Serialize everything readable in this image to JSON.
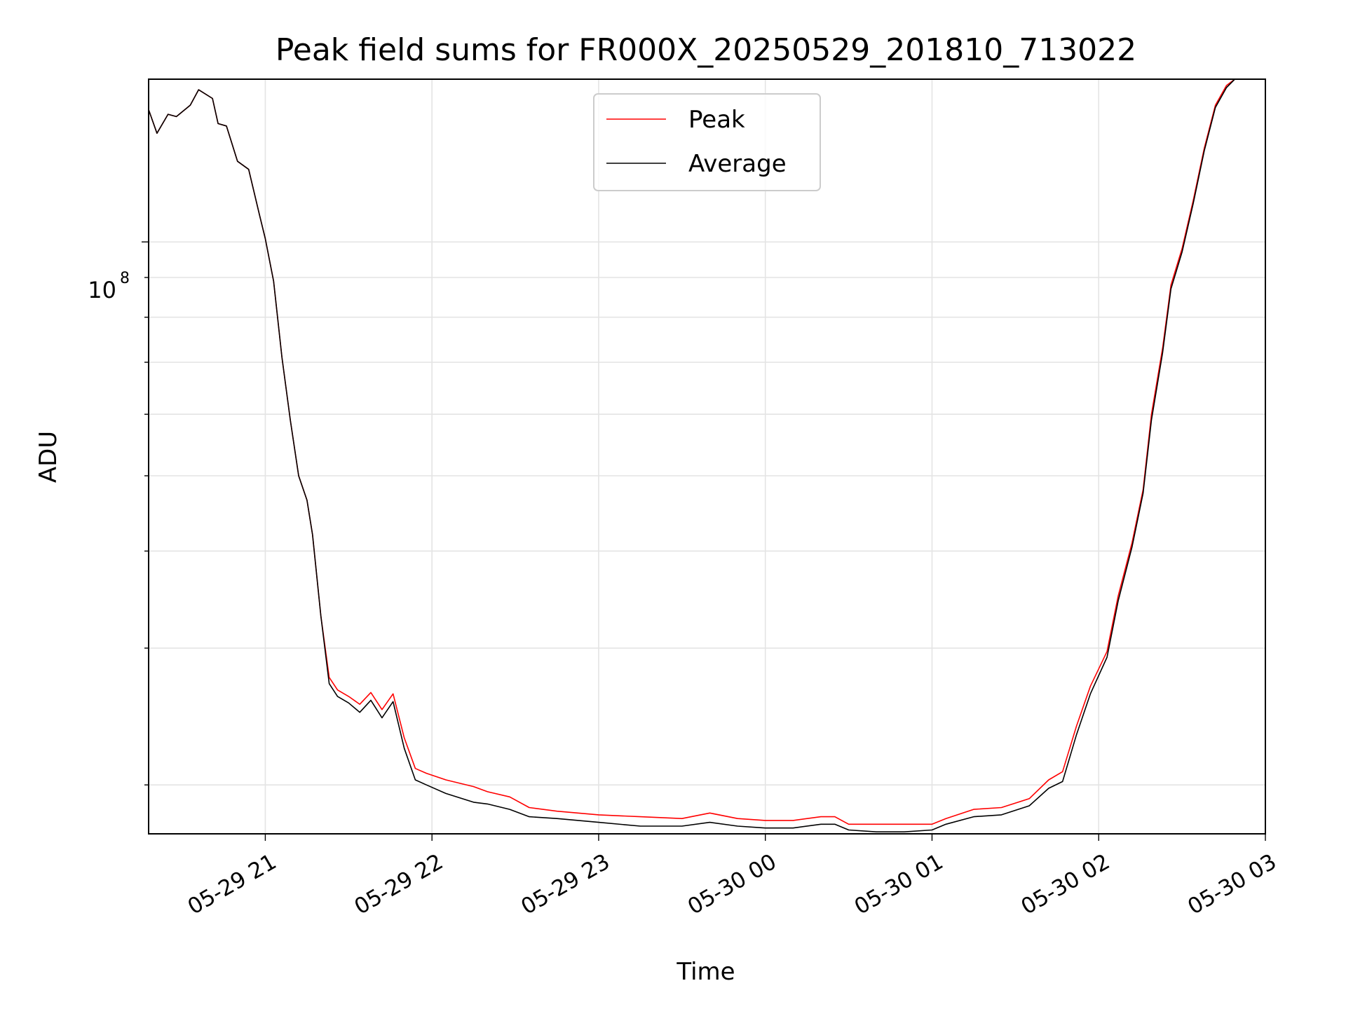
{
  "chart_data": {
    "type": "line",
    "title": "Peak field sums for FR000X_20250529_201810_713022",
    "xlabel": "Time",
    "ylabel": "ADU",
    "y_scale": "log",
    "grid": true,
    "legend_position": "top-center",
    "x_ticks": [
      "05-29 21",
      "05-29 22",
      "05-29 23",
      "05-30 00",
      "05-30 01",
      "05-30 02",
      "05-30 03"
    ],
    "y_tick_major": {
      "base": "10",
      "exponent": "8",
      "value": 100000000
    },
    "xlim": [
      "2025-05-29 20:18",
      "2025-05-30 03:00"
    ],
    "ylim": [
      17300000,
      162000000
    ],
    "series": [
      {
        "name": "Peak",
        "color": "#ff0000",
        "points": [
          [
            "2025-05-29 20:18",
            148000000
          ],
          [
            "2025-05-29 20:21",
            138000000
          ],
          [
            "2025-05-29 20:25",
            146000000
          ],
          [
            "2025-05-29 20:28",
            145000000
          ],
          [
            "2025-05-29 20:33",
            150000000
          ],
          [
            "2025-05-29 20:36",
            157000000
          ],
          [
            "2025-05-29 20:41",
            153000000
          ],
          [
            "2025-05-29 20:43",
            142000000
          ],
          [
            "2025-05-29 20:46",
            141000000
          ],
          [
            "2025-05-29 20:50",
            127000000
          ],
          [
            "2025-05-29 20:54",
            124000000
          ],
          [
            "2025-05-29 20:58",
            108000000
          ],
          [
            "2025-05-29 21:00",
            101000000
          ],
          [
            "2025-05-29 21:03",
            89000000
          ],
          [
            "2025-05-29 21:06",
            71000000
          ],
          [
            "2025-05-29 21:09",
            59000000
          ],
          [
            "2025-05-29 21:12",
            50000000
          ],
          [
            "2025-05-29 21:15",
            46500000
          ],
          [
            "2025-05-29 21:17",
            42000000
          ],
          [
            "2025-05-29 21:20",
            33000000
          ],
          [
            "2025-05-29 21:23",
            27500000
          ],
          [
            "2025-05-29 21:26",
            26500000
          ],
          [
            "2025-05-29 21:30",
            26000000
          ],
          [
            "2025-05-29 21:34",
            25400000
          ],
          [
            "2025-05-29 21:38",
            26300000
          ],
          [
            "2025-05-29 21:42",
            25000000
          ],
          [
            "2025-05-29 21:46",
            26200000
          ],
          [
            "2025-05-29 21:50",
            23000000
          ],
          [
            "2025-05-29 21:54",
            21000000
          ],
          [
            "2025-05-29 21:58",
            20700000
          ],
          [
            "2025-05-29 22:05",
            20300000
          ],
          [
            "2025-05-29 22:15",
            19900000
          ],
          [
            "2025-05-29 22:20",
            19600000
          ],
          [
            "2025-05-29 22:28",
            19300000
          ],
          [
            "2025-05-29 22:35",
            18700000
          ],
          [
            "2025-05-29 22:45",
            18500000
          ],
          [
            "2025-05-29 23:00",
            18300000
          ],
          [
            "2025-05-29 23:15",
            18200000
          ],
          [
            "2025-05-29 23:30",
            18100000
          ],
          [
            "2025-05-29 23:40",
            18400000
          ],
          [
            "2025-05-29 23:50",
            18100000
          ],
          [
            "2025-05-30 00:00",
            18000000
          ],
          [
            "2025-05-30 00:10",
            18000000
          ],
          [
            "2025-05-30 00:20",
            18200000
          ],
          [
            "2025-05-30 00:25",
            18200000
          ],
          [
            "2025-05-30 00:30",
            17800000
          ],
          [
            "2025-05-30 00:40",
            17800000
          ],
          [
            "2025-05-30 00:50",
            17800000
          ],
          [
            "2025-05-30 01:00",
            17800000
          ],
          [
            "2025-05-30 01:05",
            18100000
          ],
          [
            "2025-05-30 01:15",
            18600000
          ],
          [
            "2025-05-30 01:25",
            18700000
          ],
          [
            "2025-05-30 01:35",
            19200000
          ],
          [
            "2025-05-30 01:42",
            20300000
          ],
          [
            "2025-05-30 01:47",
            20800000
          ],
          [
            "2025-05-30 01:52",
            23800000
          ],
          [
            "2025-05-30 01:57",
            26800000
          ],
          [
            "2025-05-30 02:03",
            29700000
          ],
          [
            "2025-05-30 02:07",
            35000000
          ],
          [
            "2025-05-30 02:12",
            41000000
          ],
          [
            "2025-05-30 02:16",
            48000000
          ],
          [
            "2025-05-30 02:19",
            60000000
          ],
          [
            "2025-05-30 02:23",
            73000000
          ],
          [
            "2025-05-30 02:26",
            88000000
          ],
          [
            "2025-05-30 02:30",
            98000000
          ],
          [
            "2025-05-30 02:34",
            113000000
          ],
          [
            "2025-05-30 02:38",
            132000000
          ],
          [
            "2025-05-30 02:42",
            150000000
          ],
          [
            "2025-05-30 02:46",
            159000000
          ],
          [
            "2025-05-30 02:49",
            162000000
          ],
          [
            "2025-05-30 03:00",
            162000000
          ]
        ]
      },
      {
        "name": "Average",
        "color": "#000000",
        "points": [
          [
            "2025-05-29 20:18",
            148000000
          ],
          [
            "2025-05-29 20:21",
            138000000
          ],
          [
            "2025-05-29 20:25",
            146000000
          ],
          [
            "2025-05-29 20:28",
            145000000
          ],
          [
            "2025-05-29 20:33",
            150000000
          ],
          [
            "2025-05-29 20:36",
            157000000
          ],
          [
            "2025-05-29 20:41",
            153000000
          ],
          [
            "2025-05-29 20:43",
            142000000
          ],
          [
            "2025-05-29 20:46",
            141000000
          ],
          [
            "2025-05-29 20:50",
            127000000
          ],
          [
            "2025-05-29 20:54",
            124000000
          ],
          [
            "2025-05-29 20:58",
            108000000
          ],
          [
            "2025-05-29 21:00",
            101000000
          ],
          [
            "2025-05-29 21:03",
            89000000
          ],
          [
            "2025-05-29 21:06",
            71000000
          ],
          [
            "2025-05-29 21:09",
            59000000
          ],
          [
            "2025-05-29 21:12",
            50000000
          ],
          [
            "2025-05-29 21:15",
            46500000
          ],
          [
            "2025-05-29 21:17",
            42000000
          ],
          [
            "2025-05-29 21:20",
            33000000
          ],
          [
            "2025-05-29 21:23",
            27000000
          ],
          [
            "2025-05-29 21:26",
            26000000
          ],
          [
            "2025-05-29 21:30",
            25500000
          ],
          [
            "2025-05-29 21:34",
            24800000
          ],
          [
            "2025-05-29 21:38",
            25700000
          ],
          [
            "2025-05-29 21:42",
            24400000
          ],
          [
            "2025-05-29 21:46",
            25600000
          ],
          [
            "2025-05-29 21:50",
            22300000
          ],
          [
            "2025-05-29 21:54",
            20300000
          ],
          [
            "2025-05-29 21:58",
            20000000
          ],
          [
            "2025-05-29 22:05",
            19500000
          ],
          [
            "2025-05-29 22:15",
            19000000
          ],
          [
            "2025-05-29 22:20",
            18900000
          ],
          [
            "2025-05-29 22:28",
            18600000
          ],
          [
            "2025-05-29 22:35",
            18200000
          ],
          [
            "2025-05-29 22:45",
            18100000
          ],
          [
            "2025-05-29 23:00",
            17900000
          ],
          [
            "2025-05-29 23:15",
            17700000
          ],
          [
            "2025-05-29 23:30",
            17700000
          ],
          [
            "2025-05-29 23:40",
            17900000
          ],
          [
            "2025-05-29 23:50",
            17700000
          ],
          [
            "2025-05-30 00:00",
            17600000
          ],
          [
            "2025-05-30 00:10",
            17600000
          ],
          [
            "2025-05-30 00:20",
            17800000
          ],
          [
            "2025-05-30 00:25",
            17800000
          ],
          [
            "2025-05-30 00:30",
            17500000
          ],
          [
            "2025-05-30 00:40",
            17400000
          ],
          [
            "2025-05-30 00:50",
            17400000
          ],
          [
            "2025-05-30 01:00",
            17500000
          ],
          [
            "2025-05-30 01:05",
            17800000
          ],
          [
            "2025-05-30 01:15",
            18200000
          ],
          [
            "2025-05-30 01:25",
            18300000
          ],
          [
            "2025-05-30 01:35",
            18800000
          ],
          [
            "2025-05-30 01:42",
            19800000
          ],
          [
            "2025-05-30 01:47",
            20200000
          ],
          [
            "2025-05-30 01:52",
            23200000
          ],
          [
            "2025-05-30 01:57",
            26200000
          ],
          [
            "2025-05-30 02:03",
            29200000
          ],
          [
            "2025-05-30 02:07",
            34500000
          ],
          [
            "2025-05-30 02:12",
            40500000
          ],
          [
            "2025-05-30 02:16",
            47500000
          ],
          [
            "2025-05-30 02:19",
            59000000
          ],
          [
            "2025-05-30 02:23",
            72000000
          ],
          [
            "2025-05-30 02:26",
            87000000
          ],
          [
            "2025-05-30 02:30",
            97000000
          ],
          [
            "2025-05-30 02:34",
            112000000
          ],
          [
            "2025-05-30 02:38",
            131000000
          ],
          [
            "2025-05-30 02:42",
            149000000
          ],
          [
            "2025-05-30 02:46",
            158000000
          ],
          [
            "2025-05-30 02:49",
            162000000
          ],
          [
            "2025-05-30 03:00",
            162000000
          ]
        ]
      }
    ]
  }
}
